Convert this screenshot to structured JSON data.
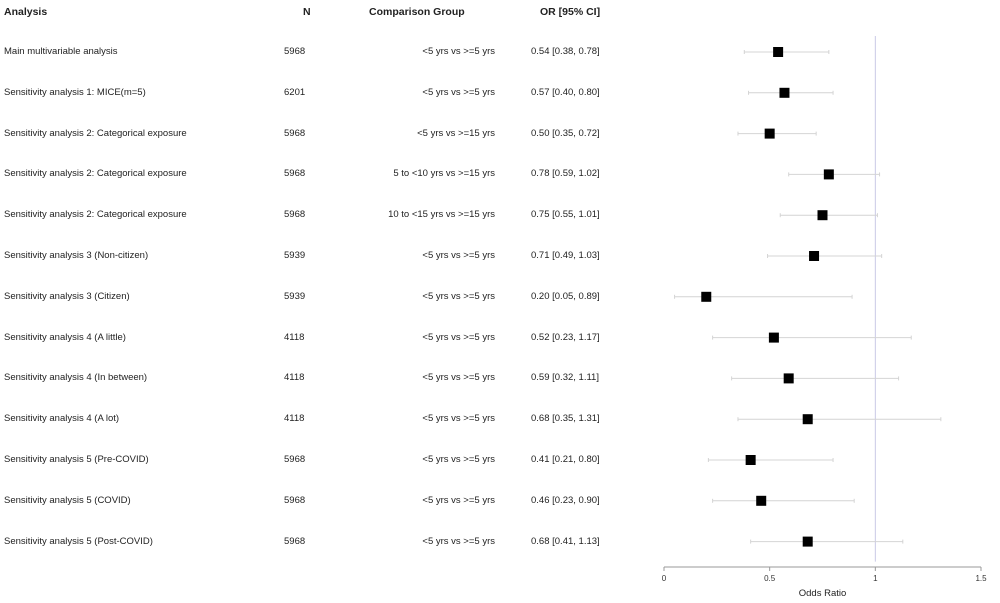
{
  "headers": {
    "analysis": "Analysis",
    "n": "N",
    "comparison": "Comparison Group",
    "or": "OR [95% CI]"
  },
  "chart_data": {
    "type": "forest",
    "xlabel": "Odds Ratio",
    "xlim": [
      0,
      1.5
    ],
    "xticks": [
      0,
      0.5,
      1,
      1.5
    ],
    "xtick_labels": [
      "0",
      "0.5",
      "1",
      "1.5"
    ],
    "reference_line": 1,
    "rows": [
      {
        "analysis": "Main multivariable analysis",
        "n": "5968",
        "comparison": "<5 yrs vs >=5 yrs",
        "or_text": "0.54 [0.38, 0.78]",
        "or": 0.54,
        "lo": 0.38,
        "hi": 0.78
      },
      {
        "analysis": "Sensitivity analysis 1: MICE(m=5)",
        "n": "6201",
        "comparison": "<5 yrs vs >=5 yrs",
        "or_text": "0.57 [0.40, 0.80]",
        "or": 0.57,
        "lo": 0.4,
        "hi": 0.8
      },
      {
        "analysis": "Sensitivity analysis 2: Categorical exposure",
        "n": "5968",
        "comparison": "<5 yrs vs >=15 yrs",
        "or_text": "0.50 [0.35, 0.72]",
        "or": 0.5,
        "lo": 0.35,
        "hi": 0.72
      },
      {
        "analysis": "Sensitivity analysis 2: Categorical exposure",
        "n": "5968",
        "comparison": "5 to <10 yrs vs >=15 yrs",
        "or_text": "0.78 [0.59, 1.02]",
        "or": 0.78,
        "lo": 0.59,
        "hi": 1.02
      },
      {
        "analysis": "Sensitivity analysis 2: Categorical exposure",
        "n": "5968",
        "comparison": "10 to <15 yrs vs >=15 yrs",
        "or_text": "0.75 [0.55, 1.01]",
        "or": 0.75,
        "lo": 0.55,
        "hi": 1.01
      },
      {
        "analysis": "Sensitivity analysis 3 (Non-citizen)",
        "n": "5939",
        "comparison": "<5 yrs vs >=5 yrs",
        "or_text": "0.71 [0.49, 1.03]",
        "or": 0.71,
        "lo": 0.49,
        "hi": 1.03
      },
      {
        "analysis": "Sensitivity analysis 3 (Citizen)",
        "n": "5939",
        "comparison": "<5 yrs vs >=5 yrs",
        "or_text": "0.20 [0.05, 0.89]",
        "or": 0.2,
        "lo": 0.05,
        "hi": 0.89
      },
      {
        "analysis": "Sensitivity analysis 4 (A little)",
        "n": "4118",
        "comparison": "<5 yrs vs >=5 yrs",
        "or_text": "0.52 [0.23, 1.17]",
        "or": 0.52,
        "lo": 0.23,
        "hi": 1.17
      },
      {
        "analysis": "Sensitivity analysis 4 (In between)",
        "n": "4118",
        "comparison": "<5 yrs vs >=5 yrs",
        "or_text": "0.59 [0.32, 1.11]",
        "or": 0.59,
        "lo": 0.32,
        "hi": 1.11
      },
      {
        "analysis": "Sensitivity analysis 4 (A lot)",
        "n": "4118",
        "comparison": "<5 yrs vs >=5 yrs",
        "or_text": "0.68 [0.35, 1.31]",
        "or": 0.68,
        "lo": 0.35,
        "hi": 1.31
      },
      {
        "analysis": "Sensitivity analysis 5 (Pre-COVID)",
        "n": "5968",
        "comparison": "<5 yrs vs >=5 yrs",
        "or_text": "0.41 [0.21, 0.80]",
        "or": 0.41,
        "lo": 0.21,
        "hi": 0.8
      },
      {
        "analysis": "Sensitivity analysis 5 (COVID)",
        "n": "5968",
        "comparison": "<5 yrs vs >=5 yrs",
        "or_text": "0.46 [0.23, 0.90]",
        "or": 0.46,
        "lo": 0.23,
        "hi": 0.9
      },
      {
        "analysis": "Sensitivity analysis 5 (Post-COVID)",
        "n": "5968",
        "comparison": "<5 yrs vs >=5 yrs",
        "or_text": "0.68 [0.41, 1.13]",
        "or": 0.68,
        "lo": 0.41,
        "hi": 1.13
      }
    ]
  }
}
